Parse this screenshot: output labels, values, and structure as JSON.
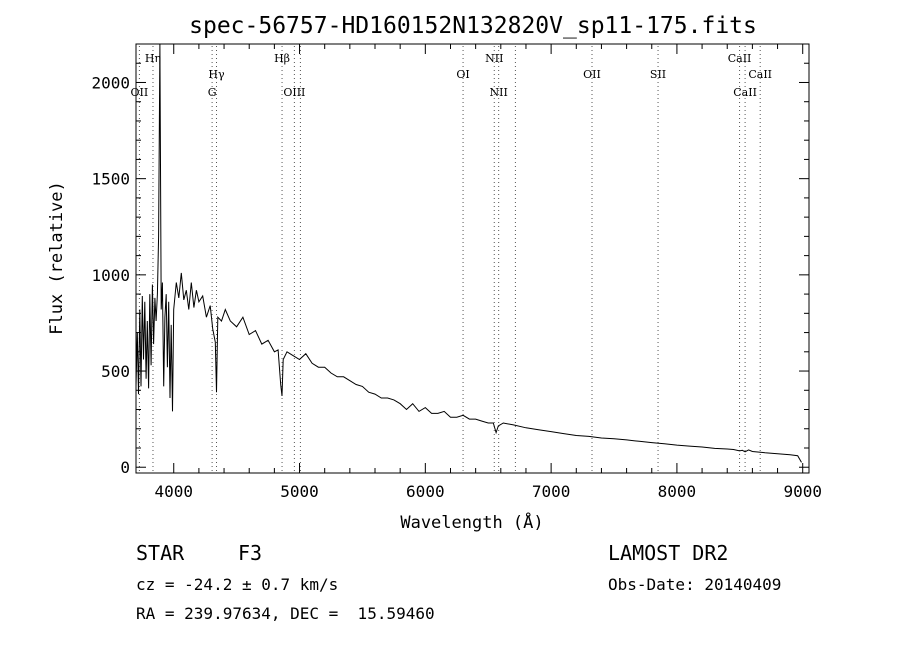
{
  "chart_data": {
    "type": "line",
    "title": "spec-56757-HD160152N132820V_sp11-175.fits",
    "xlabel": "Wavelength (Å)",
    "ylabel": "Flux (relative)",
    "xlim": [
      3700,
      9050
    ],
    "ylim": [
      -30,
      2200
    ],
    "x_ticks": [
      4000,
      5000,
      6000,
      7000,
      8000,
      9000
    ],
    "y_ticks": [
      0,
      500,
      1000,
      1500,
      2000
    ],
    "grid": false,
    "series": [
      {
        "x": [
          3700,
          3710,
          3720,
          3730,
          3740,
          3750,
          3760,
          3770,
          3780,
          3790,
          3800,
          3810,
          3820,
          3830,
          3840,
          3850,
          3860,
          3870,
          3880,
          3890,
          3900,
          3910,
          3920,
          3930,
          3940,
          3950,
          3960,
          3970,
          3980,
          3990,
          4000,
          4020,
          4040,
          4060,
          4080,
          4100,
          4120,
          4140,
          4160,
          4180,
          4200,
          4230,
          4260,
          4290,
          4310,
          4330,
          4340,
          4350,
          4380,
          4410,
          4450,
          4500,
          4550,
          4600,
          4650,
          4700,
          4750,
          4800,
          4830,
          4850,
          4861,
          4870,
          4900,
          4950,
          5000,
          5050,
          5100,
          5150,
          5200,
          5250,
          5300,
          5350,
          5400,
          5450,
          5500,
          5550,
          5600,
          5650,
          5700,
          5750,
          5800,
          5850,
          5900,
          5950,
          6000,
          6050,
          6100,
          6150,
          6200,
          6250,
          6300,
          6350,
          6400,
          6450,
          6500,
          6540,
          6563,
          6580,
          6620,
          6700,
          6800,
          6900,
          7000,
          7100,
          7200,
          7300,
          7400,
          7500,
          7600,
          7700,
          7800,
          7900,
          8000,
          8100,
          8200,
          8300,
          8400,
          8450,
          8498,
          8520,
          8542,
          8570,
          8600,
          8662,
          8700,
          8800,
          8900,
          8960,
          8990
        ],
        "values": [
          420,
          700,
          380,
          820,
          420,
          890,
          560,
          860,
          460,
          760,
          410,
          900,
          530,
          950,
          640,
          880,
          760,
          900,
          1200,
          2200,
          820,
          960,
          420,
          780,
          900,
          520,
          860,
          360,
          740,
          290,
          820,
          960,
          880,
          1010,
          870,
          920,
          820,
          960,
          830,
          920,
          860,
          890,
          780,
          840,
          720,
          650,
          390,
          780,
          760,
          820,
          760,
          730,
          780,
          690,
          710,
          640,
          660,
          600,
          610,
          430,
          370,
          560,
          600,
          580,
          560,
          590,
          540,
          520,
          520,
          490,
          470,
          470,
          450,
          430,
          420,
          390,
          380,
          360,
          360,
          350,
          330,
          300,
          330,
          290,
          310,
          280,
          280,
          290,
          260,
          260,
          270,
          250,
          250,
          240,
          230,
          230,
          180,
          215,
          230,
          220,
          205,
          195,
          185,
          175,
          165,
          160,
          152,
          148,
          142,
          135,
          128,
          122,
          115,
          110,
          105,
          98,
          95,
          92,
          85,
          88,
          80,
          90,
          82,
          78,
          75,
          70,
          65,
          60,
          25
        ]
      }
    ],
    "line_markers": [
      {
        "label": "Hη",
        "x": 3835,
        "row": 0
      },
      {
        "label": "OII",
        "x": 3727,
        "row": 2
      },
      {
        "label": "Hγ",
        "x": 4340,
        "row": 1
      },
      {
        "label": "G",
        "x": 4305,
        "row": 2
      },
      {
        "label": "Hβ",
        "x": 4861,
        "row": 0
      },
      {
        "label": "OIII",
        "x": 4959,
        "row": 2
      },
      {
        "label": "OIII",
        "x": 5007,
        "row": 2,
        "hidden_label": true
      },
      {
        "label": "OI",
        "x": 6300,
        "row": 1
      },
      {
        "label": "NII",
        "x": 6548,
        "row": 0
      },
      {
        "label": "NII",
        "x": 6583,
        "row": 2
      },
      {
        "label": "OII",
        "x": 7325,
        "row": 1
      },
      {
        "label": "SII",
        "x": 6716,
        "row": 1,
        "hidden_label": true
      },
      {
        "label": "SII",
        "x": 7850,
        "row": 1
      },
      {
        "label": "CaII",
        "x": 8498,
        "row": 0
      },
      {
        "label": "CaII",
        "x": 8542,
        "row": 2
      },
      {
        "label": "CaII",
        "x": 8662,
        "row": 1
      }
    ],
    "colors": {
      "line": "#000000",
      "marker": "#555555",
      "axes": "#000000"
    }
  },
  "info": {
    "object_type": "STAR",
    "subclass": "F3",
    "survey": "LAMOST DR2",
    "redshift_line": "cz = -24.2 ± 0.7 km/s",
    "obs_date": "Obs-Date: 20140409",
    "coords": "RA = 239.97634, DEC =  15.59460"
  }
}
